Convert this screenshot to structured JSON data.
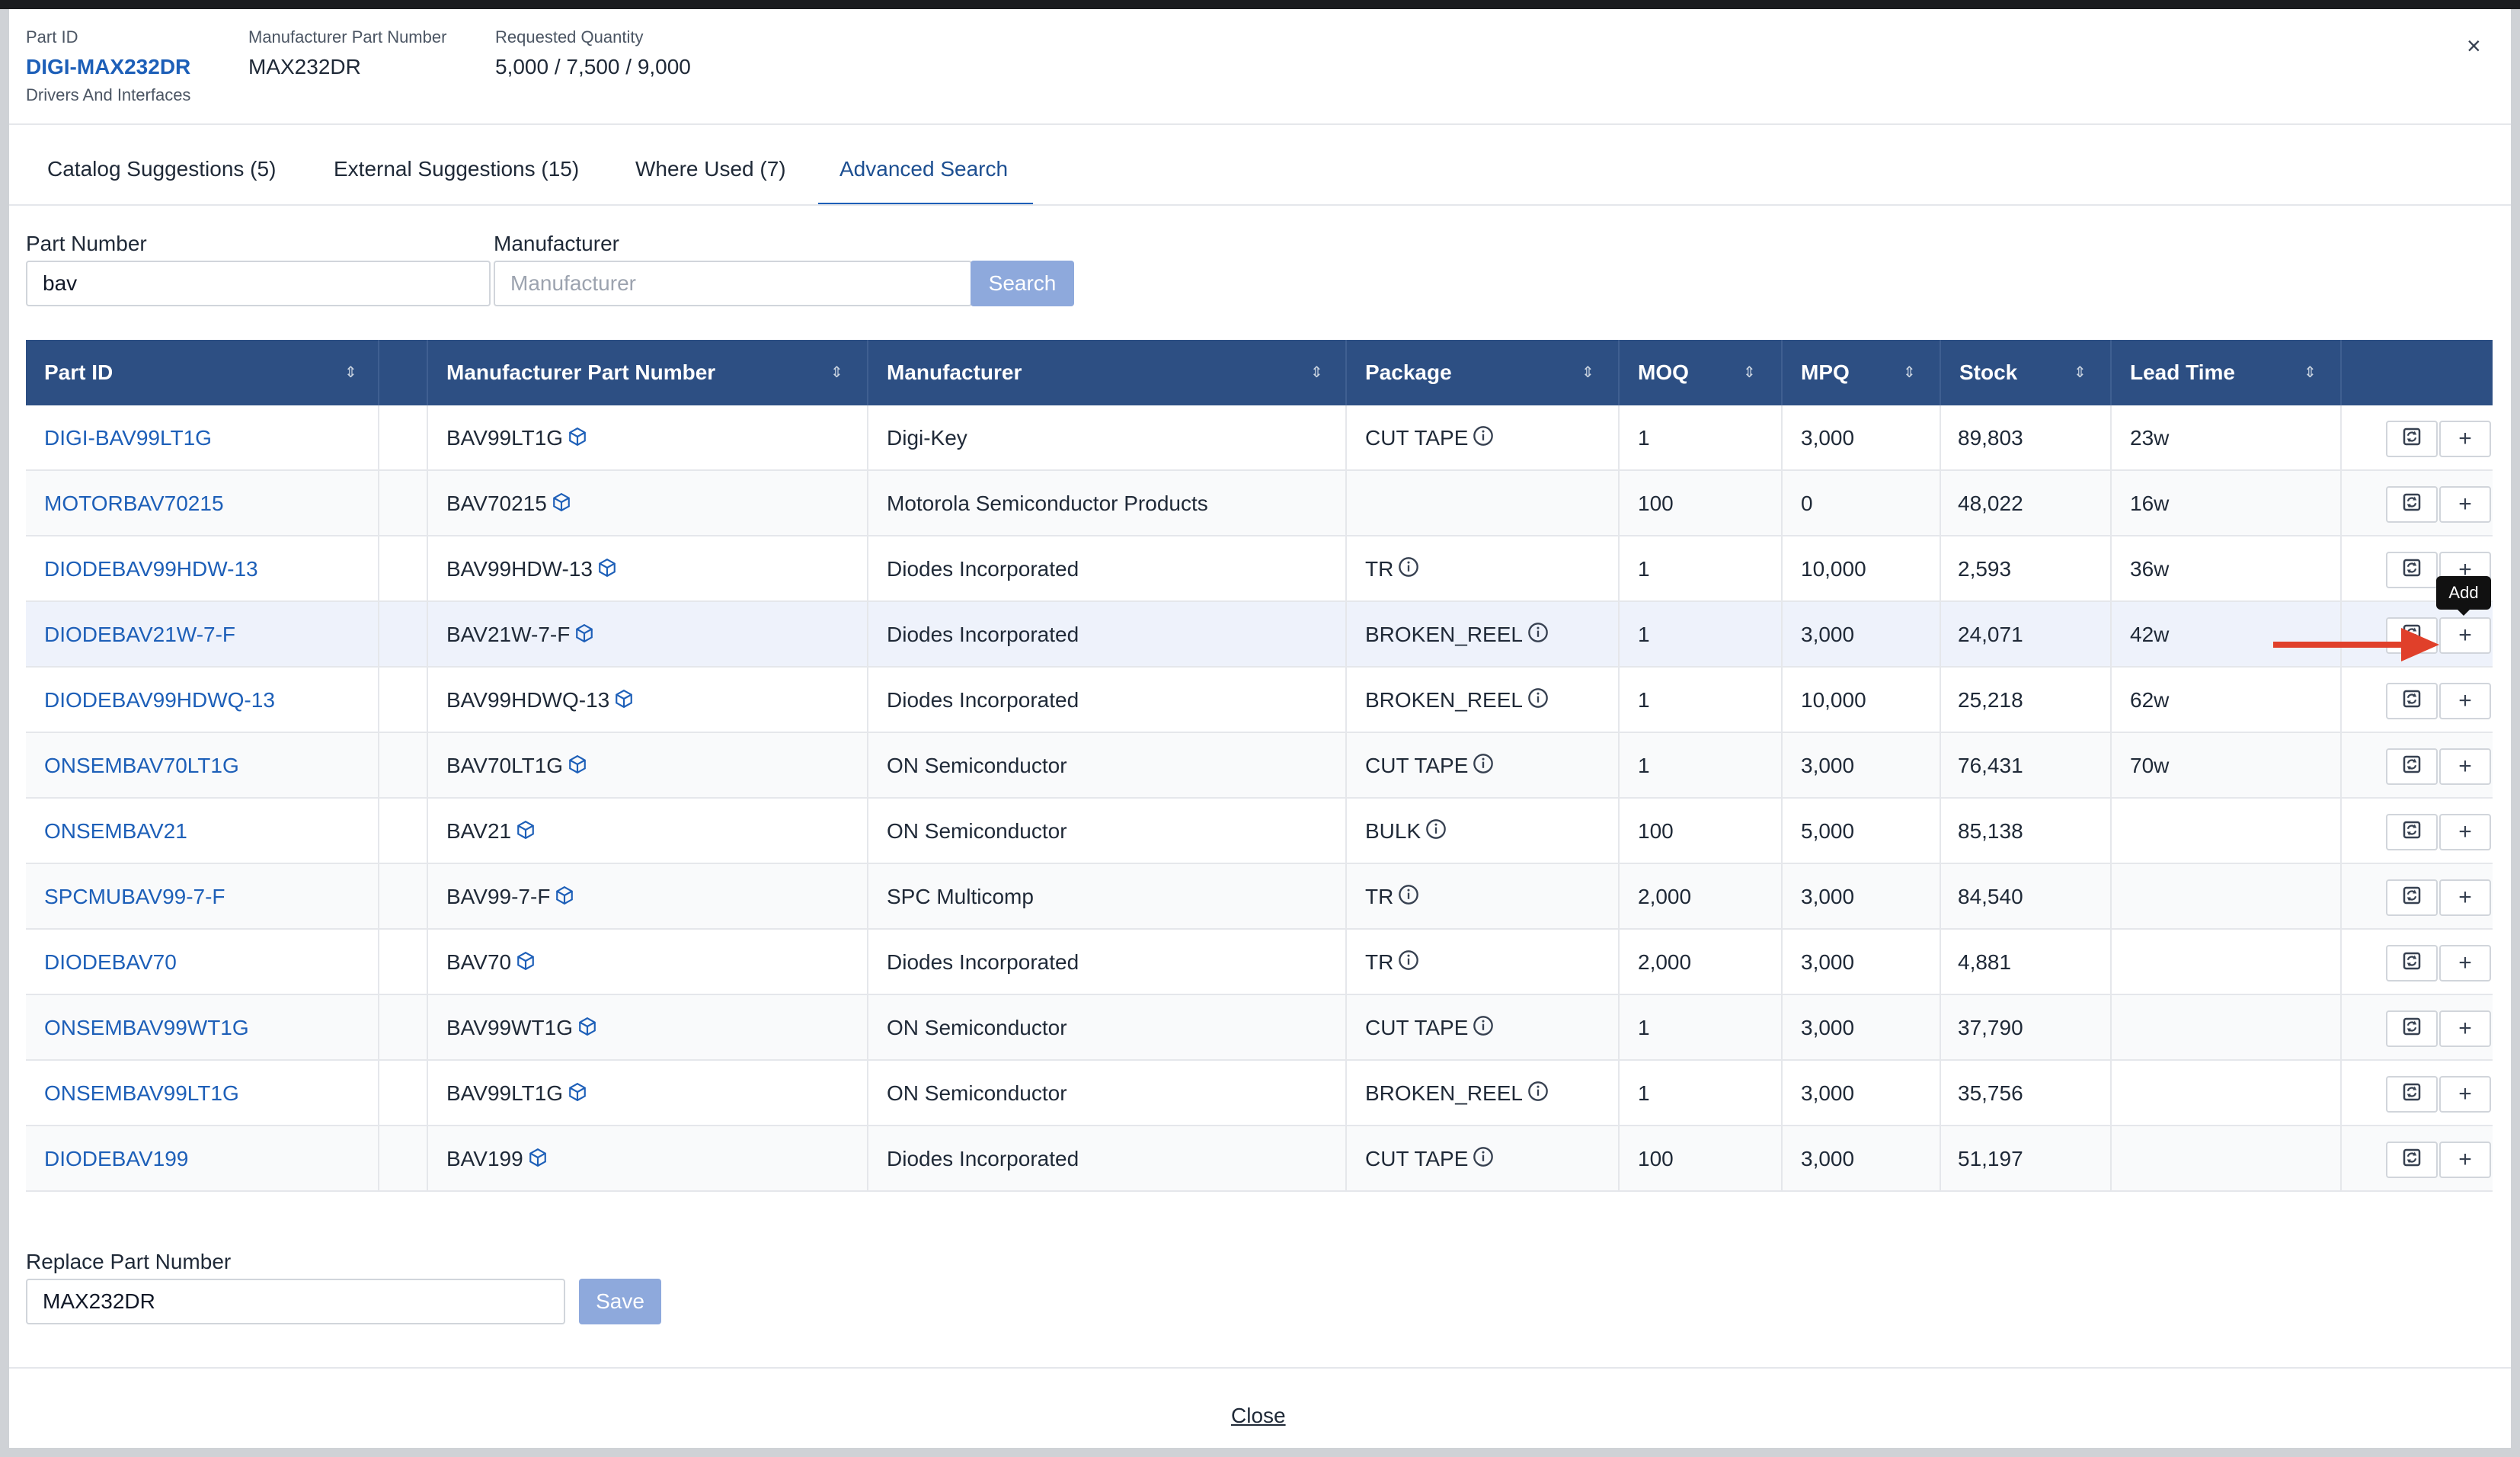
{
  "header": {
    "part_id_label": "Part ID",
    "part_id": "DIGI-MAX232DR",
    "category": "Drivers And Interfaces",
    "mpn_label": "Manufacturer Part Number",
    "mpn": "MAX232DR",
    "qty_label": "Requested Quantity",
    "qty": "5,000 / 7,500 / 9,000",
    "close_icon": "×"
  },
  "tabs": [
    {
      "label": "Catalog Suggestions (5)"
    },
    {
      "label": "External Suggestions (15)"
    },
    {
      "label": "Where Used (7)"
    },
    {
      "label": "Advanced Search",
      "active": true
    }
  ],
  "search": {
    "part_number_label": "Part Number",
    "part_number_value": "bav",
    "manufacturer_label": "Manufacturer",
    "manufacturer_placeholder": "Manufacturer",
    "search_button": "Search"
  },
  "table": {
    "columns": [
      "Part ID",
      "",
      "Manufacturer Part Number",
      "Manufacturer",
      "Package",
      "MOQ",
      "MPQ",
      "Stock",
      "Lead Time",
      ""
    ],
    "rows": [
      {
        "part_id": "DIGI-BAV99LT1G",
        "mpn": "BAV99LT1G",
        "manufacturer": "Digi-Key",
        "package": "CUT TAPE",
        "moq": "1",
        "mpq": "3,000",
        "stock": "89,803",
        "lead": "23w"
      },
      {
        "part_id": "MOTORBAV70215",
        "mpn": "BAV70215",
        "manufacturer": "Motorola Semiconductor Products",
        "package": "",
        "moq": "100",
        "mpq": "0",
        "stock": "48,022",
        "lead": "16w"
      },
      {
        "part_id": "DIODEBAV99HDW-13",
        "mpn": "BAV99HDW-13",
        "manufacturer": "Diodes Incorporated",
        "package": "TR",
        "moq": "1",
        "mpq": "10,000",
        "stock": "2,593",
        "lead": "36w"
      },
      {
        "part_id": "DIODEBAV21W-7-F",
        "mpn": "BAV21W-7-F",
        "manufacturer": "Diodes Incorporated",
        "package": "BROKEN_REEL",
        "moq": "1",
        "mpq": "3,000",
        "stock": "24,071",
        "lead": "42w",
        "highlight": true
      },
      {
        "part_id": "DIODEBAV99HDWQ-13",
        "mpn": "BAV99HDWQ-13",
        "manufacturer": "Diodes Incorporated",
        "package": "BROKEN_REEL",
        "moq": "1",
        "mpq": "10,000",
        "stock": "25,218",
        "lead": "62w"
      },
      {
        "part_id": "ONSEMBAV70LT1G",
        "mpn": "BAV70LT1G",
        "manufacturer": "ON Semiconductor",
        "package": "CUT TAPE",
        "moq": "1",
        "mpq": "3,000",
        "stock": "76,431",
        "lead": "70w"
      },
      {
        "part_id": "ONSEMBAV21",
        "mpn": "BAV21",
        "manufacturer": "ON Semiconductor",
        "package": "BULK",
        "moq": "100",
        "mpq": "5,000",
        "stock": "85,138",
        "lead": ""
      },
      {
        "part_id": "SPCMUBAV99-7-F",
        "mpn": "BAV99-7-F",
        "manufacturer": "SPC Multicomp",
        "package": "TR",
        "moq": "2,000",
        "mpq": "3,000",
        "stock": "84,540",
        "lead": ""
      },
      {
        "part_id": "DIODEBAV70",
        "mpn": "BAV70",
        "manufacturer": "Diodes Incorporated",
        "package": "TR",
        "moq": "2,000",
        "mpq": "3,000",
        "stock": "4,881",
        "lead": ""
      },
      {
        "part_id": "ONSEMBAV99WT1G",
        "mpn": "BAV99WT1G",
        "manufacturer": "ON Semiconductor",
        "package": "CUT TAPE",
        "moq": "1",
        "mpq": "3,000",
        "stock": "37,790",
        "lead": ""
      },
      {
        "part_id": "ONSEMBAV99LT1G",
        "mpn": "BAV99LT1G",
        "manufacturer": "ON Semiconductor",
        "package": "BROKEN_REEL",
        "moq": "1",
        "mpq": "3,000",
        "stock": "35,756",
        "lead": ""
      },
      {
        "part_id": "DIODEBAV199",
        "mpn": "BAV199",
        "manufacturer": "Diodes Incorporated",
        "package": "CUT TAPE",
        "moq": "100",
        "mpq": "3,000",
        "stock": "51,197",
        "lead": ""
      }
    ],
    "add_button": "+",
    "tooltip": "Add",
    "icons": {
      "cube": "cube-icon",
      "info": "info-icon",
      "replace": "replace-icon",
      "sort": "sort-icon"
    }
  },
  "replace": {
    "label": "Replace Part Number",
    "value": "MAX232DR",
    "save_button": "Save"
  },
  "footer": {
    "close_link": "Close"
  },
  "colors": {
    "accent": "#1d5fb8",
    "table_header": "#2d4f83",
    "button_disabled": "#8ea9dc",
    "arrow": "#e0402a"
  }
}
